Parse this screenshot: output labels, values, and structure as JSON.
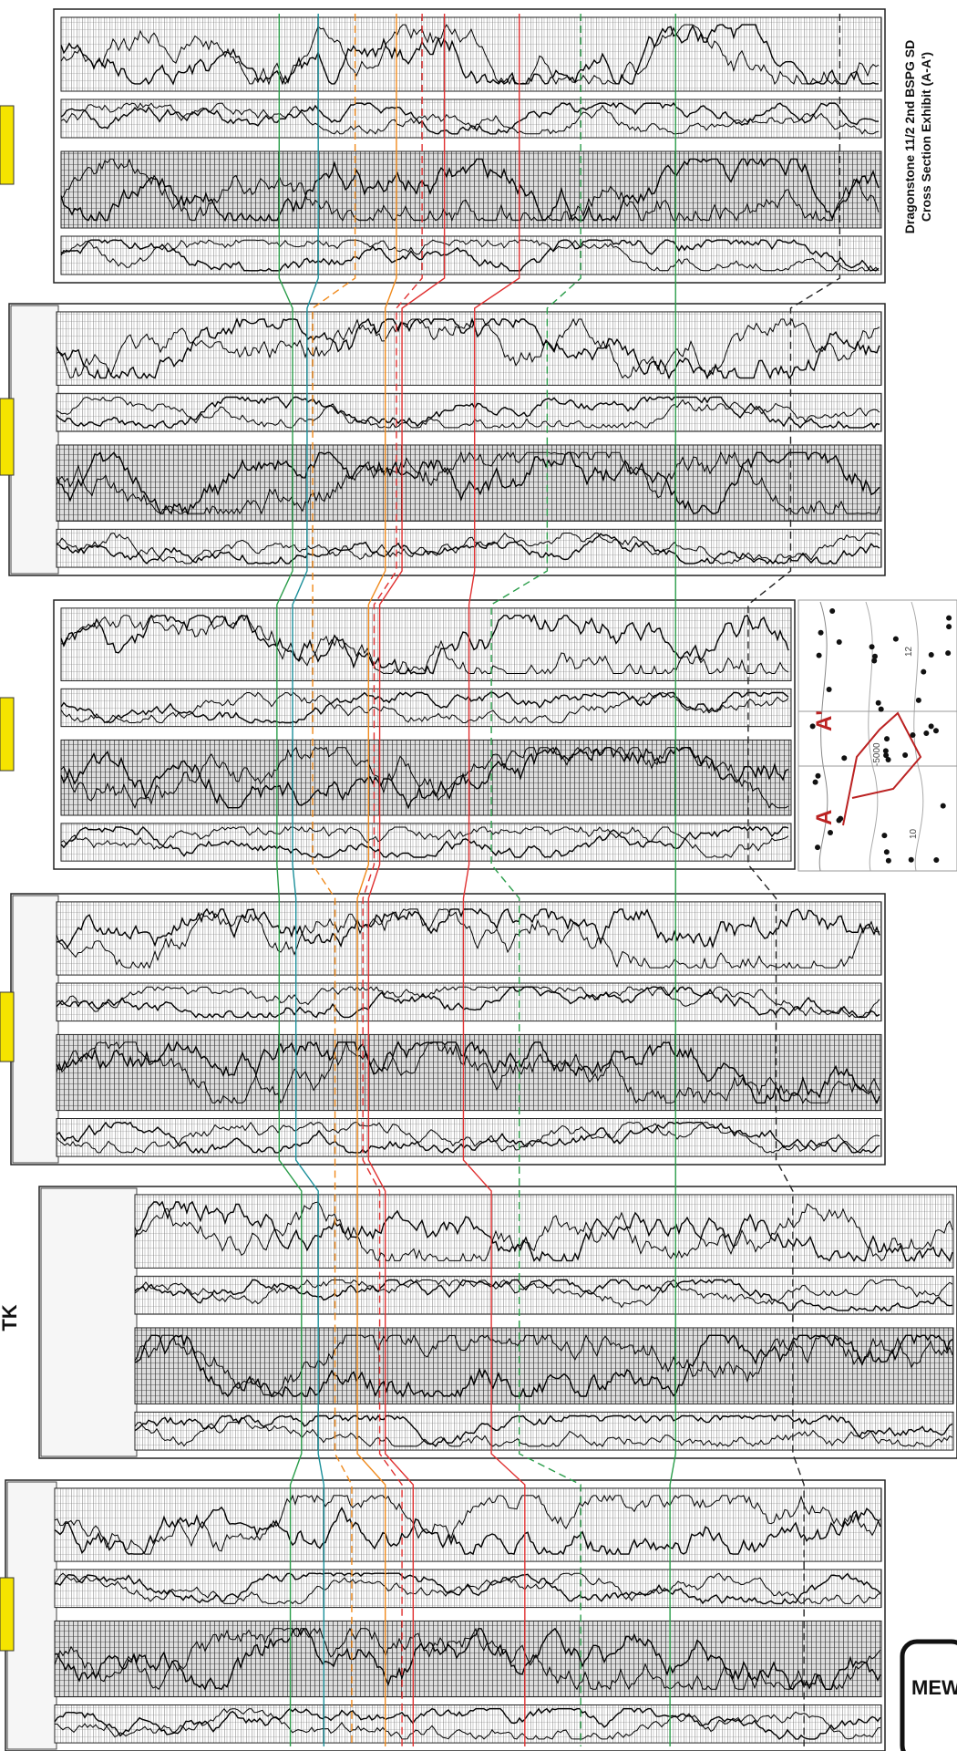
{
  "title": {
    "line1": "Dragonstone 11/2 2nd BSPG SD",
    "line2": "Cross Section Exhibit (A-A')"
  },
  "map": {
    "start_label": "A",
    "end_label": "A'",
    "contour_labels": [
      "-5000",
      "10",
      "12"
    ]
  },
  "side_tab": "TK",
  "stamp": "MEW"
}
